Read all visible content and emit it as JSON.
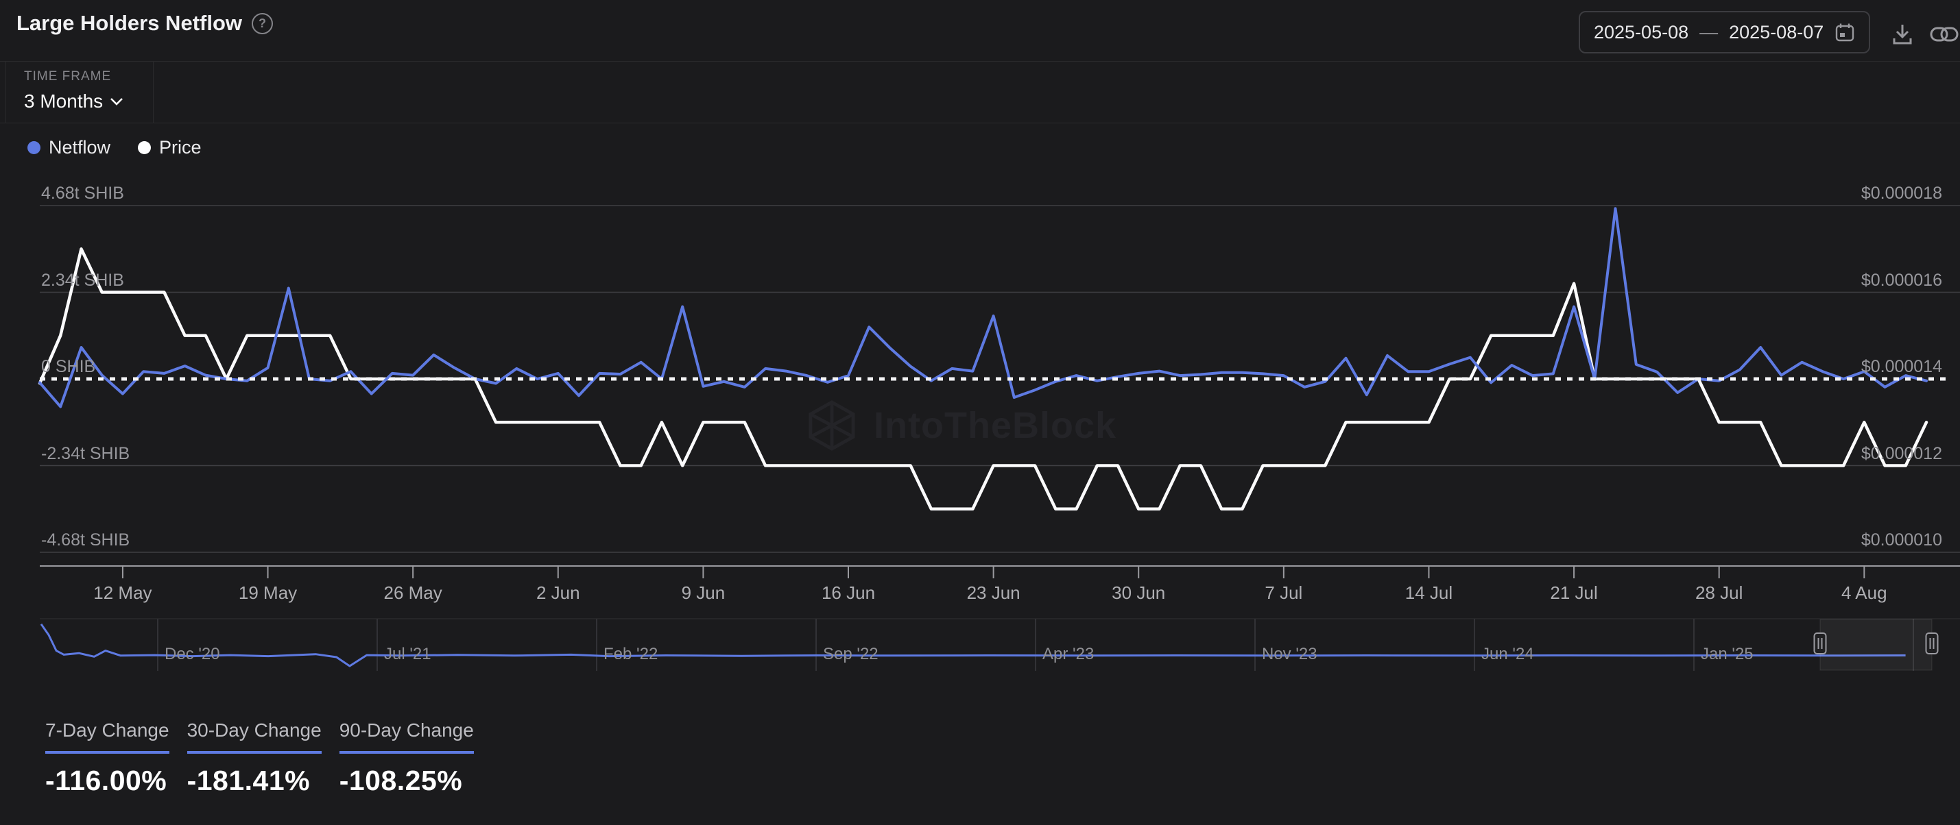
{
  "header": {
    "title": "Large Holders Netflow",
    "help_icon": "question-mark-icon",
    "date_range": {
      "start": "2025-05-08",
      "separator": "—",
      "end": "2025-08-07"
    },
    "actions": {
      "download_icon": "download-icon",
      "share_icon": "link-icon"
    }
  },
  "controls": {
    "time_frame_label": "TIME FRAME",
    "time_frame_value": "3 Months"
  },
  "legend": [
    {
      "label": "Netflow",
      "color": "#5e7ae2"
    },
    {
      "label": "Price",
      "color": "#ffffff"
    }
  ],
  "colors": {
    "background": "#1b1b1d",
    "accent": "#5e7ae2",
    "price_line": "#fbfbfc",
    "grid": "#3f3f43",
    "axis": "#9a9a9f",
    "muted_text": "#97979c",
    "watermark": "#242428"
  },
  "watermark_text": "IntoTheBlock",
  "stats": [
    {
      "label": "7-Day Change",
      "value": "-116.00%"
    },
    {
      "label": "30-Day Change",
      "value": "-181.41%"
    },
    {
      "label": "90-Day Change",
      "value": "-108.25%"
    }
  ],
  "chart_data": [
    {
      "type": "line",
      "title": "Large Holders Netflow",
      "x_tick_labels": [
        "12 May",
        "19 May",
        "26 May",
        "2 Jun",
        "9 Jun",
        "16 Jun",
        "23 Jun",
        "30 Jun",
        "7 Jul",
        "14 Jul",
        "21 Jul",
        "28 Jul",
        "4 Aug"
      ],
      "y_axis_left": {
        "labels": [
          "4.68t SHIB",
          "2.34t SHIB",
          "0 SHIB",
          "-2.34t SHIB",
          "-4.68t SHIB"
        ],
        "ticks_trillions": [
          4.68,
          2.34,
          0,
          -2.34,
          -4.68
        ]
      },
      "y_axis_right": {
        "labels": [
          "$0.000018",
          "$0.000016",
          "$0.000014",
          "$0.000012",
          "$0.000010"
        ],
        "ticks_usd": [
          1.8e-05,
          1.6e-05,
          1.4e-05,
          1.2e-05,
          1e-05
        ]
      },
      "zero_line_style": "dotted",
      "dates": [
        "2025-05-08",
        "2025-05-09",
        "2025-05-10",
        "2025-05-11",
        "2025-05-12",
        "2025-05-13",
        "2025-05-14",
        "2025-05-15",
        "2025-05-16",
        "2025-05-17",
        "2025-05-18",
        "2025-05-19",
        "2025-05-20",
        "2025-05-21",
        "2025-05-22",
        "2025-05-23",
        "2025-05-24",
        "2025-05-25",
        "2025-05-26",
        "2025-05-27",
        "2025-05-28",
        "2025-05-29",
        "2025-05-30",
        "2025-05-31",
        "2025-06-01",
        "2025-06-02",
        "2025-06-03",
        "2025-06-04",
        "2025-06-05",
        "2025-06-06",
        "2025-06-07",
        "2025-06-08",
        "2025-06-09",
        "2025-06-10",
        "2025-06-11",
        "2025-06-12",
        "2025-06-13",
        "2025-06-14",
        "2025-06-15",
        "2025-06-16",
        "2025-06-17",
        "2025-06-18",
        "2025-06-19",
        "2025-06-20",
        "2025-06-21",
        "2025-06-22",
        "2025-06-23",
        "2025-06-24",
        "2025-06-25",
        "2025-06-26",
        "2025-06-27",
        "2025-06-28",
        "2025-06-29",
        "2025-06-30",
        "2025-07-01",
        "2025-07-02",
        "2025-07-03",
        "2025-07-04",
        "2025-07-05",
        "2025-07-06",
        "2025-07-07",
        "2025-07-08",
        "2025-07-09",
        "2025-07-10",
        "2025-07-11",
        "2025-07-12",
        "2025-07-13",
        "2025-07-14",
        "2025-07-15",
        "2025-07-16",
        "2025-07-17",
        "2025-07-18",
        "2025-07-19",
        "2025-07-20",
        "2025-07-21",
        "2025-07-22",
        "2025-07-23",
        "2025-07-24",
        "2025-07-25",
        "2025-07-26",
        "2025-07-27",
        "2025-07-28",
        "2025-07-29",
        "2025-07-30",
        "2025-07-31",
        "2025-08-01",
        "2025-08-02",
        "2025-08-03",
        "2025-08-04",
        "2025-08-05",
        "2025-08-06",
        "2025-08-07"
      ],
      "series": [
        {
          "name": "Netflow",
          "axis": "left",
          "unit": "trillion SHIB",
          "color": "#5e7ae2",
          "values": [
            -0.1,
            -0.75,
            0.85,
            0.1,
            -0.4,
            0.2,
            0.15,
            0.35,
            0.1,
            0,
            -0.05,
            0.3,
            2.45,
            0,
            -0.05,
            0.2,
            -0.4,
            0.15,
            0.1,
            0.65,
            0.3,
            0,
            -0.12,
            0.28,
            0,
            0.15,
            -0.45,
            0.15,
            0.13,
            0.45,
            0,
            1.95,
            -0.2,
            -0.07,
            -0.22,
            0.28,
            0.21,
            0.09,
            -0.09,
            0.09,
            1.4,
            0.84,
            0.34,
            -0.05,
            0.28,
            0.21,
            1.7,
            -0.5,
            -0.3,
            -0.07,
            0.09,
            -0.05,
            0.06,
            0.15,
            0.21,
            0.09,
            0.12,
            0.17,
            0.17,
            0.14,
            0.09,
            -0.22,
            -0.07,
            0.56,
            -0.43,
            0.63,
            0.2,
            0.2,
            0.4,
            0.58,
            -0.1,
            0.37,
            0.09,
            0.14,
            1.95,
            0,
            4.6,
            0.39,
            0.19,
            -0.37,
            0,
            -0.05,
            0.25,
            0.85,
            0.1,
            0.45,
            0.2,
            0,
            0.2,
            -0.22,
            0.09,
            -0.05
          ]
        },
        {
          "name": "Price",
          "axis": "right",
          "unit": "USD",
          "color": "#fbfbfc",
          "values": [
            1.39e-05,
            1.5e-05,
            1.7e-05,
            1.6e-05,
            1.6e-05,
            1.6e-05,
            1.6e-05,
            1.5e-05,
            1.5e-05,
            1.4e-05,
            1.5e-05,
            1.5e-05,
            1.5e-05,
            1.5e-05,
            1.5e-05,
            1.4e-05,
            1.4e-05,
            1.4e-05,
            1.4e-05,
            1.4e-05,
            1.4e-05,
            1.4e-05,
            1.3e-05,
            1.3e-05,
            1.3e-05,
            1.3e-05,
            1.3e-05,
            1.3e-05,
            1.2e-05,
            1.2e-05,
            1.3e-05,
            1.2e-05,
            1.3e-05,
            1.3e-05,
            1.3e-05,
            1.2e-05,
            1.2e-05,
            1.2e-05,
            1.2e-05,
            1.2e-05,
            1.2e-05,
            1.2e-05,
            1.2e-05,
            1.1e-05,
            1.1e-05,
            1.1e-05,
            1.2e-05,
            1.2e-05,
            1.2e-05,
            1.1e-05,
            1.1e-05,
            1.2e-05,
            1.2e-05,
            1.1e-05,
            1.1e-05,
            1.2e-05,
            1.2e-05,
            1.1e-05,
            1.1e-05,
            1.2e-05,
            1.2e-05,
            1.2e-05,
            1.2e-05,
            1.3e-05,
            1.3e-05,
            1.3e-05,
            1.3e-05,
            1.3e-05,
            1.4e-05,
            1.4e-05,
            1.5e-05,
            1.5e-05,
            1.5e-05,
            1.5e-05,
            1.62e-05,
            1.4e-05,
            1.4e-05,
            1.4e-05,
            1.4e-05,
            1.4e-05,
            1.4e-05,
            1.3e-05,
            1.3e-05,
            1.3e-05,
            1.2e-05,
            1.2e-05,
            1.2e-05,
            1.2e-05,
            1.3e-05,
            1.2e-05,
            1.2e-05,
            1.3e-05
          ]
        }
      ]
    },
    {
      "type": "line",
      "name": "navigator",
      "x_labels": [
        "Dec '20",
        "Jul '21",
        "Feb '22",
        "Sep '22",
        "Apr '23",
        "Nov '23",
        "Jun '24",
        "Jan '25"
      ],
      "selection_range": {
        "start": "2025-05-08",
        "end": "2025-08-07"
      },
      "points_normalized": [
        [
          0.0,
          0.08
        ],
        [
          0.004,
          0.3
        ],
        [
          0.008,
          0.62
        ],
        [
          0.012,
          0.7
        ],
        [
          0.02,
          0.67
        ],
        [
          0.028,
          0.74
        ],
        [
          0.034,
          0.62
        ],
        [
          0.042,
          0.72
        ],
        [
          0.06,
          0.71
        ],
        [
          0.08,
          0.73
        ],
        [
          0.1,
          0.71
        ],
        [
          0.12,
          0.73
        ],
        [
          0.145,
          0.69
        ],
        [
          0.156,
          0.75
        ],
        [
          0.163,
          0.93
        ],
        [
          0.172,
          0.71
        ],
        [
          0.19,
          0.72
        ],
        [
          0.22,
          0.705
        ],
        [
          0.25,
          0.72
        ],
        [
          0.28,
          0.7
        ],
        [
          0.3,
          0.73
        ],
        [
          0.33,
          0.715
        ],
        [
          0.37,
          0.725
        ],
        [
          0.41,
          0.715
        ],
        [
          0.45,
          0.72
        ],
        [
          0.5,
          0.715
        ],
        [
          0.55,
          0.72
        ],
        [
          0.6,
          0.715
        ],
        [
          0.65,
          0.72
        ],
        [
          0.7,
          0.715
        ],
        [
          0.75,
          0.72
        ],
        [
          0.8,
          0.715
        ],
        [
          0.85,
          0.72
        ],
        [
          0.9,
          0.715
        ],
        [
          0.95,
          0.72
        ],
        [
          0.985,
          0.715
        ]
      ]
    }
  ]
}
